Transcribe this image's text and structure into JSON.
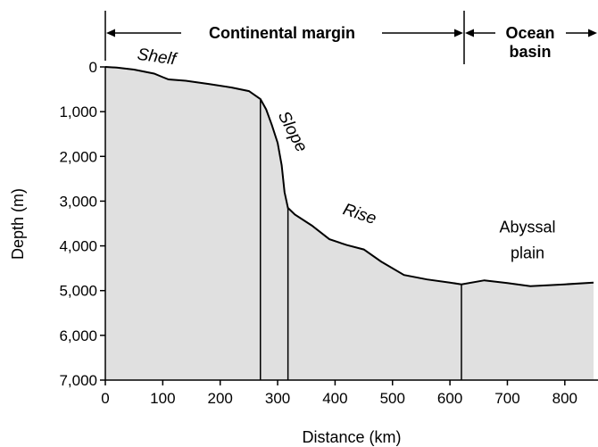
{
  "chart_data": {
    "type": "area",
    "xlabel": "Distance (km)",
    "ylabel": "Depth (m)",
    "xlim": [
      0,
      850
    ],
    "ylim": [
      0,
      7000
    ],
    "y_inverted": true,
    "x_ticks": [
      0,
      100,
      200,
      300,
      400,
      500,
      600,
      700,
      800
    ],
    "x_tick_labels": [
      "0",
      "100",
      "200",
      "300",
      "400",
      "500",
      "600",
      "700",
      "800"
    ],
    "y_ticks": [
      0,
      1000,
      2000,
      3000,
      4000,
      5000,
      6000,
      7000
    ],
    "y_tick_labels": [
      "0",
      "1,000",
      "2,000",
      "3,000",
      "4,000",
      "5,000",
      "6,000",
      "7,000"
    ],
    "fill_color": "#e0e0e0",
    "profile": [
      {
        "x": 0,
        "y": 0
      },
      {
        "x": 20,
        "y": 15
      },
      {
        "x": 50,
        "y": 60
      },
      {
        "x": 85,
        "y": 150
      },
      {
        "x": 100,
        "y": 230
      },
      {
        "x": 110,
        "y": 280
      },
      {
        "x": 140,
        "y": 310
      },
      {
        "x": 180,
        "y": 380
      },
      {
        "x": 220,
        "y": 460
      },
      {
        "x": 250,
        "y": 540
      },
      {
        "x": 270,
        "y": 720
      },
      {
        "x": 280,
        "y": 950
      },
      {
        "x": 290,
        "y": 1300
      },
      {
        "x": 300,
        "y": 1700
      },
      {
        "x": 307,
        "y": 2200
      },
      {
        "x": 312,
        "y": 2800
      },
      {
        "x": 318,
        "y": 3150
      },
      {
        "x": 330,
        "y": 3300
      },
      {
        "x": 360,
        "y": 3550
      },
      {
        "x": 390,
        "y": 3850
      },
      {
        "x": 420,
        "y": 3980
      },
      {
        "x": 450,
        "y": 4080
      },
      {
        "x": 480,
        "y": 4350
      },
      {
        "x": 520,
        "y": 4650
      },
      {
        "x": 560,
        "y": 4750
      },
      {
        "x": 600,
        "y": 4820
      },
      {
        "x": 620,
        "y": 4860
      },
      {
        "x": 660,
        "y": 4770
      },
      {
        "x": 700,
        "y": 4830
      },
      {
        "x": 740,
        "y": 4900
      },
      {
        "x": 800,
        "y": 4860
      },
      {
        "x": 850,
        "y": 4820
      }
    ],
    "dividers": [
      {
        "x": 270,
        "y_top": 720
      },
      {
        "x": 318,
        "y_top": 3150
      },
      {
        "x": 620,
        "y_top": 4860
      }
    ],
    "annotations": [
      {
        "text": "Shelf",
        "x": 88,
        "y": -110,
        "style": "italic",
        "rotate": 8
      },
      {
        "text": "Slope",
        "x": 318,
        "y": 1500,
        "style": "italic",
        "rotate": 62
      },
      {
        "text": "Rise",
        "x": 440,
        "y": 3400,
        "style": "italic",
        "rotate": 18
      },
      {
        "text": "Abyssal",
        "x": 735,
        "y": 3700,
        "style": "normal",
        "rotate": 0
      },
      {
        "text": "plain",
        "x": 735,
        "y": 4280,
        "style": "normal",
        "rotate": 0
      }
    ],
    "regions": [
      {
        "label": "Continental margin",
        "x_start": 0,
        "x_end": 620
      },
      {
        "label": "Ocean basin",
        "lines": [
          "Ocean",
          "basin"
        ],
        "x_start": 620,
        "x_end": 850
      }
    ]
  }
}
